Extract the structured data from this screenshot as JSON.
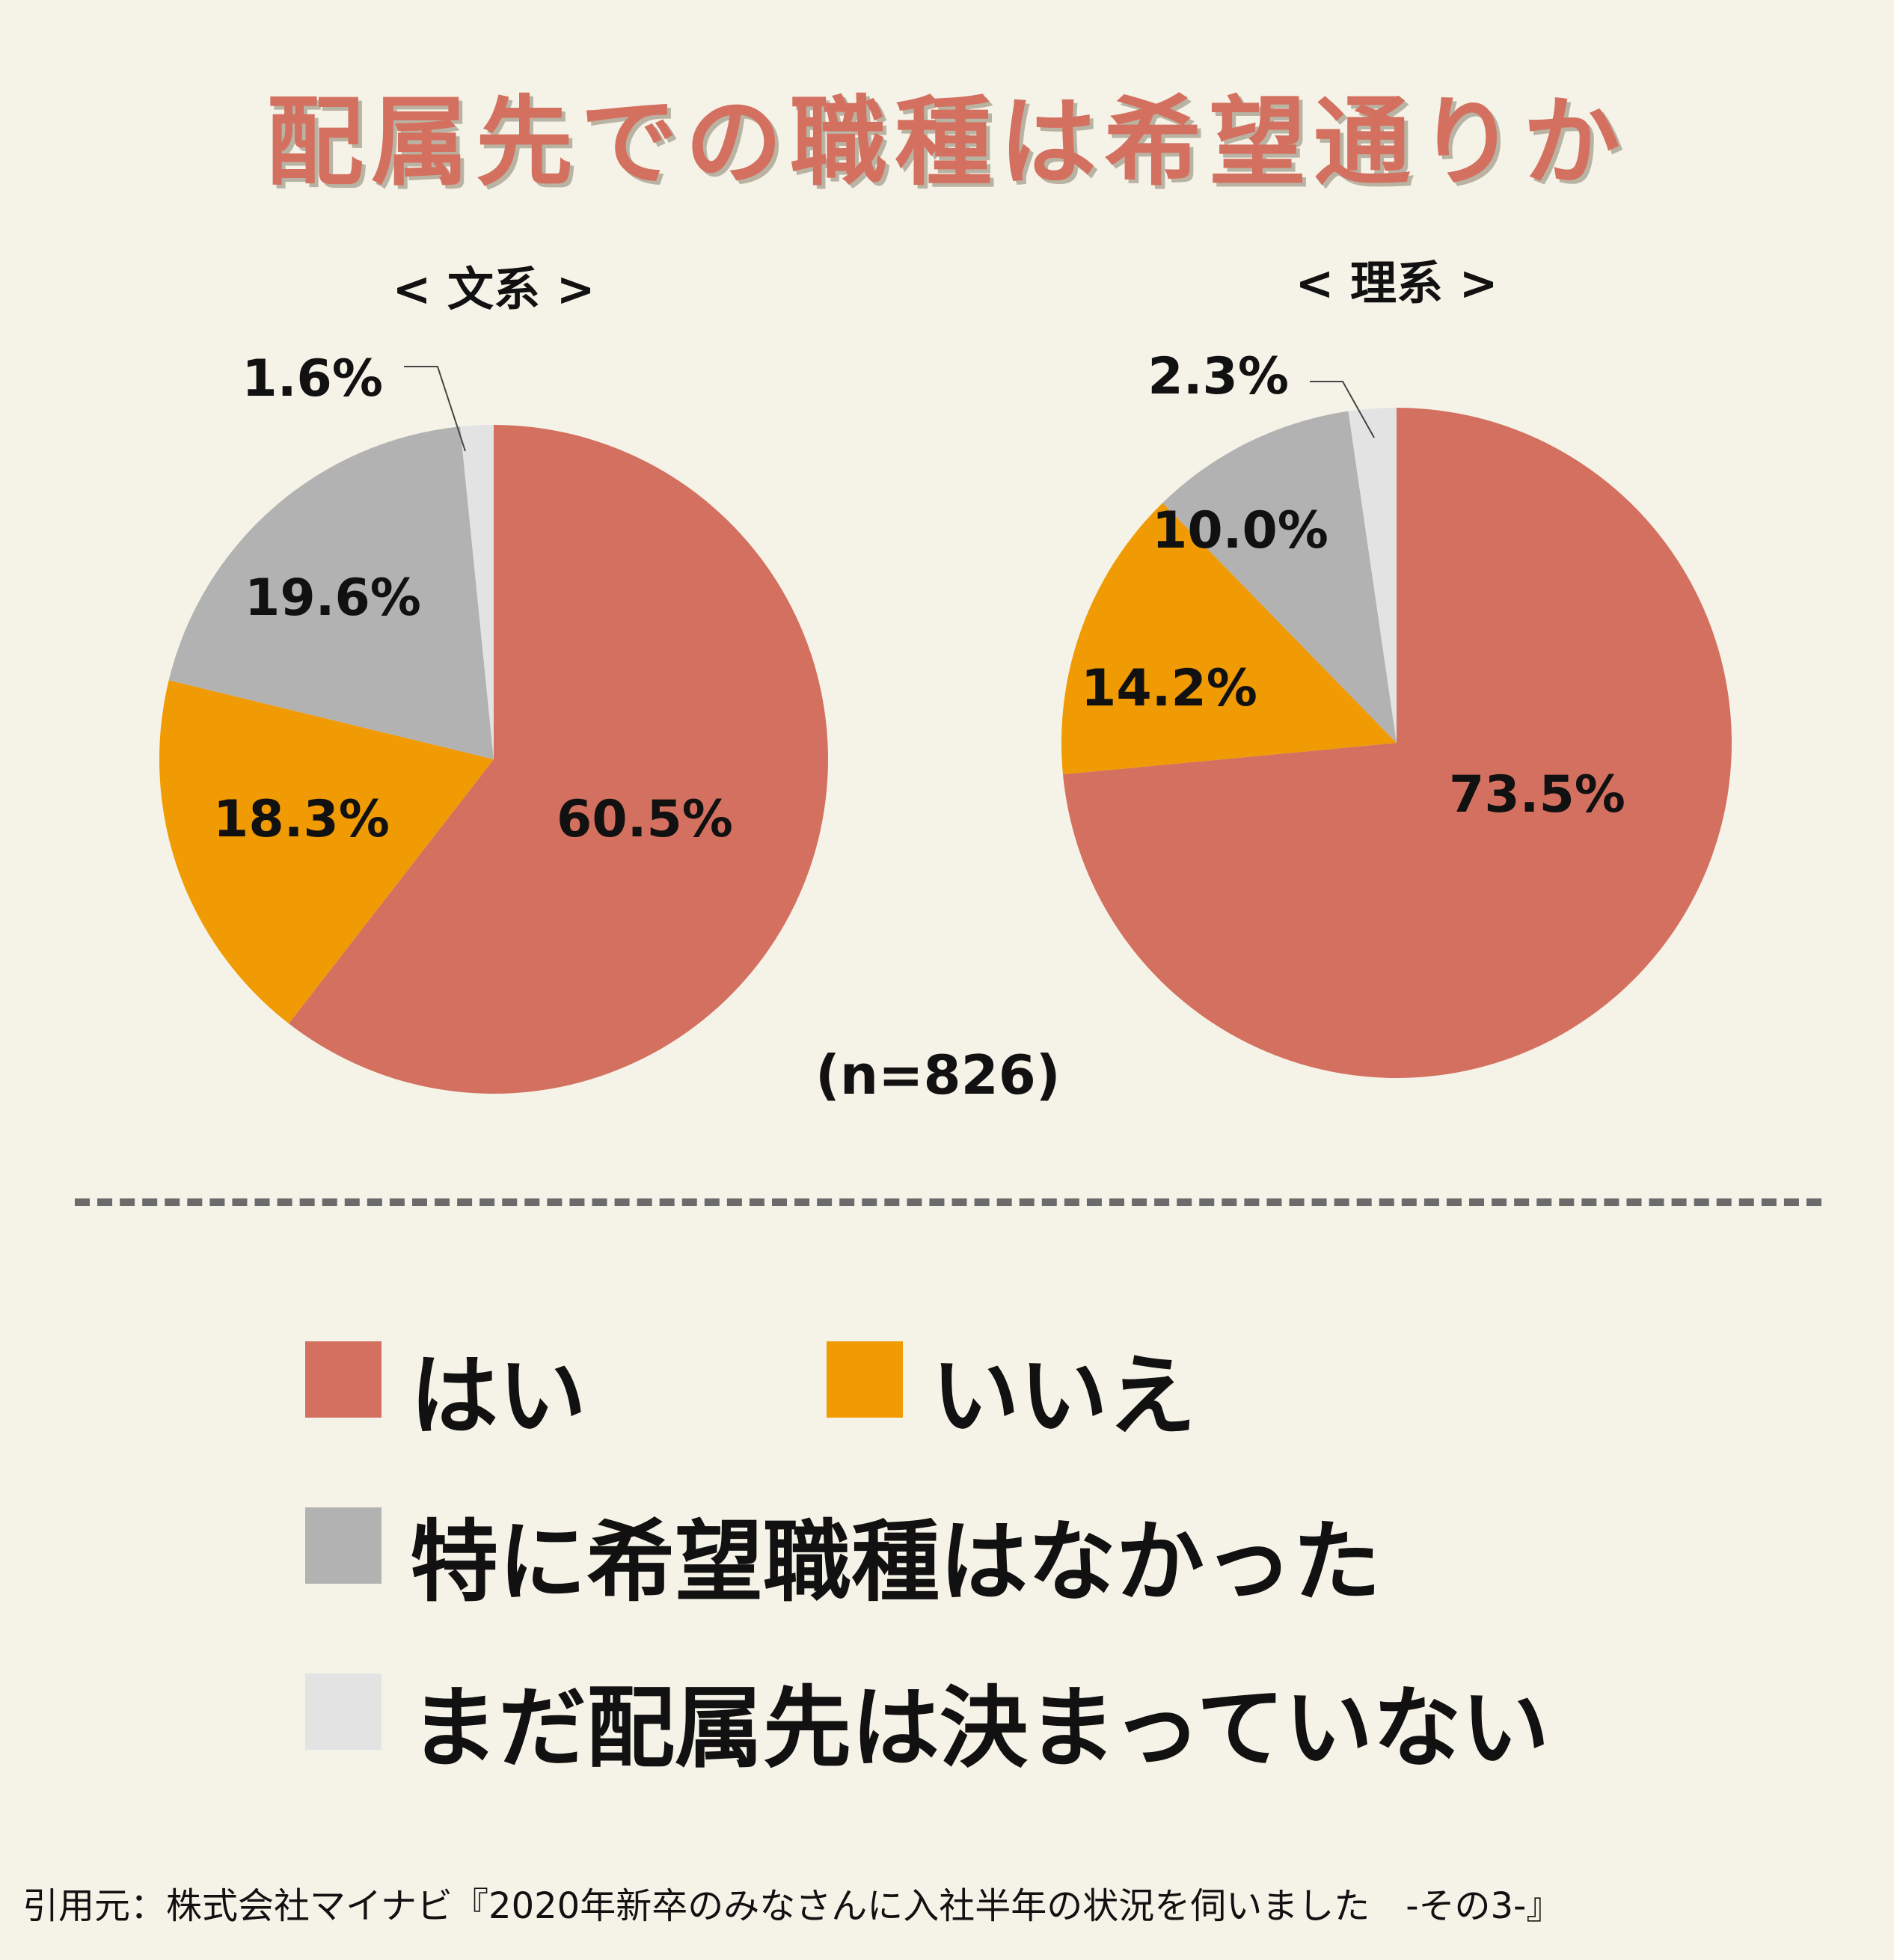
{
  "title": "配属先での職種は希望通りか",
  "colors": {
    "hai": "#d4705f",
    "iie": "#f09a04",
    "none": "#b2b2b2",
    "undecided": "#e3e3e3"
  },
  "chart_data": [
    {
      "type": "pie",
      "title": "< 文系 >",
      "slices": [
        {
          "key": "hai",
          "label": "はい",
          "value": 60.5,
          "text": "60.5%"
        },
        {
          "key": "iie",
          "label": "いいえ",
          "value": 18.3,
          "text": "18.3%"
        },
        {
          "key": "none",
          "label": "特に希望職種はなかった",
          "value": 19.6,
          "text": "19.6%"
        },
        {
          "key": "undecided",
          "label": "まだ配属先は決まっていない",
          "value": 1.6,
          "text": "1.6%"
        }
      ]
    },
    {
      "type": "pie",
      "title": "< 理系 >",
      "slices": [
        {
          "key": "hai",
          "label": "はい",
          "value": 73.5,
          "text": "73.5%"
        },
        {
          "key": "iie",
          "label": "いいえ",
          "value": 14.2,
          "text": "14.2%"
        },
        {
          "key": "none",
          "label": "特に希望職種はなかった",
          "value": 10.0,
          "text": "10.0%"
        },
        {
          "key": "undecided",
          "label": "まだ配属先は決まっていない",
          "value": 2.3,
          "text": "2.3%"
        }
      ]
    }
  ],
  "sample_size": "(n=826)",
  "legend": [
    {
      "key": "hai",
      "label": "はい"
    },
    {
      "key": "iie",
      "label": "いいえ"
    },
    {
      "key": "none",
      "label": "特に希望職種はなかった"
    },
    {
      "key": "undecided",
      "label": "まだ配属先は決まっていない"
    }
  ],
  "source": "引用元：株式会社マイナビ『2020年新卒のみなさんに入社半年の状況を伺いました　-その3-』"
}
